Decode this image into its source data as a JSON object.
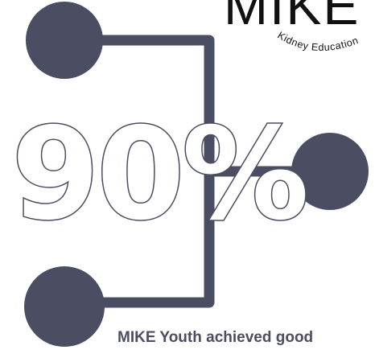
{
  "logo": {
    "wordmark": "MIKE",
    "tagline": "Kidney Education"
  },
  "stat": {
    "value": "90%"
  },
  "caption": "MIKE Youth achieved good",
  "colors": {
    "connector": "#4b4e62",
    "node": "#4b4e62",
    "text_outline": "#4b4e62",
    "background": "#ffffff"
  }
}
